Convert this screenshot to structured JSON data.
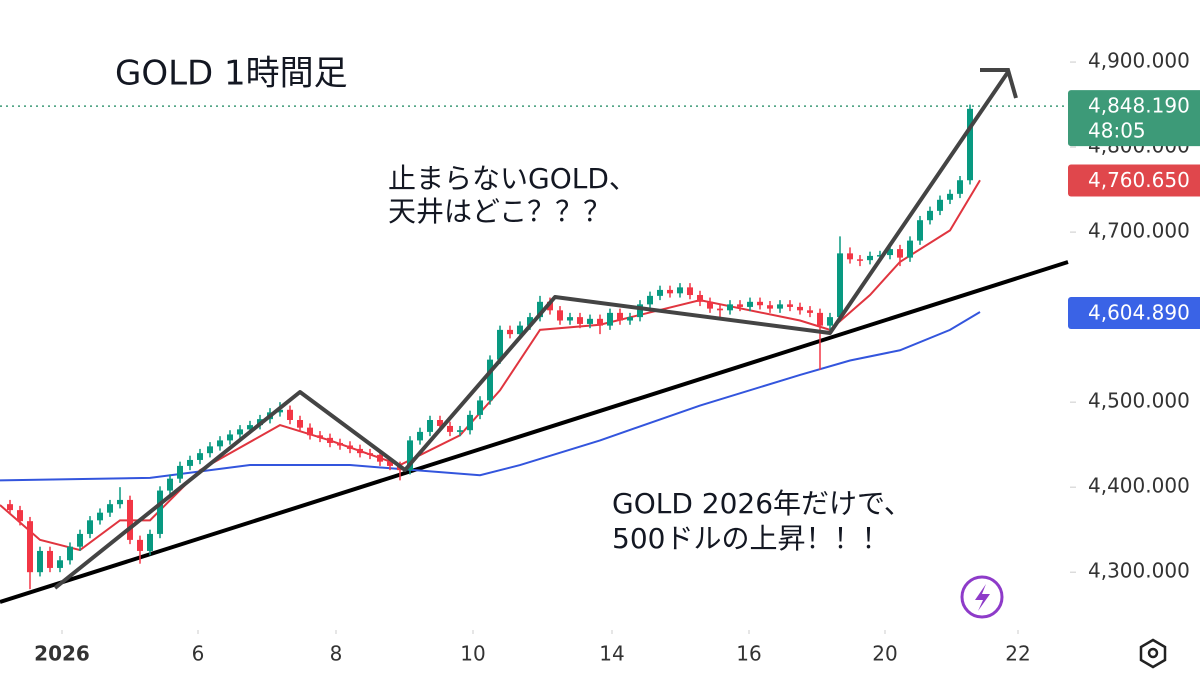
{
  "chart_data": {
    "type": "candlestick",
    "title": "GOLD 1時間足",
    "annotations": [
      [
        "止まらないGOLD、",
        "天井はどこ？？？"
      ],
      [
        "GOLD 2026年だけで、",
        "500ドルの上昇！！！"
      ]
    ],
    "up_color": "#089981",
    "down_color": "#f23645",
    "xlim": [
      -1,
      106
    ],
    "ylim": [
      4232,
      4973
    ],
    "xticks": [
      {
        "value": 5.2,
        "label": "2026"
      },
      {
        "value": 18.8,
        "label": "6"
      },
      {
        "value": 32.6,
        "label": "8"
      },
      {
        "value": 46.3,
        "label": "10"
      },
      {
        "value": 60.2,
        "label": "14"
      },
      {
        "value": 73.9,
        "label": "16"
      },
      {
        "value": 87.5,
        "label": "20"
      },
      {
        "value": 100.8,
        "label": "22"
      }
    ],
    "yticks": [
      {
        "value": 4300,
        "label": "4,300.000"
      },
      {
        "value": 4400,
        "label": "4,400.000"
      },
      {
        "value": 4500,
        "label": "4,500.000"
      },
      {
        "value": 4600,
        "label": "4,600.000"
      },
      {
        "value": 4700,
        "label": "4,700.000"
      },
      {
        "value": 4800,
        "label": "4,800.000"
      },
      {
        "value": 4900,
        "label": "4,900.000"
      }
    ],
    "open": [
      4380,
      4373,
      4360,
      4300,
      4325,
      4305,
      4314,
      4330,
      4345,
      4361,
      4370,
      4380,
      4385,
      4338,
      4325,
      4345,
      4396,
      4410,
      4425,
      4432,
      4440,
      4448,
      4455,
      4462,
      4468,
      4473,
      4480,
      4488,
      4491,
      4479,
      4470,
      4461,
      4458,
      4452,
      4449,
      4445,
      4440,
      4438,
      4430,
      4425,
      4420,
      4455,
      4465,
      4479,
      4472,
      4465,
      4467,
      4485,
      4502,
      4550,
      4585,
      4580,
      4590,
      4600,
      4618,
      4608,
      4596,
      4600,
      4592,
      4598,
      4590,
      4605,
      4596,
      4600,
      4615,
      4625,
      4632,
      4628,
      4635,
      4626,
      4618,
      4610,
      4608,
      4615,
      4612,
      4618,
      4614,
      4610,
      4615,
      4612,
      4608,
      4605,
      4590,
      4600,
      4675,
      4668,
      4667,
      4672,
      4673,
      4680,
      4670,
      4690,
      4714,
      4725,
      4738,
      4745,
      4761
    ],
    "close": [
      4373,
      4360,
      4300,
      4325,
      4305,
      4314,
      4330,
      4345,
      4361,
      4370,
      4380,
      4385,
      4338,
      4325,
      4345,
      4396,
      4410,
      4425,
      4432,
      4440,
      4448,
      4455,
      4462,
      4468,
      4473,
      4480,
      4488,
      4491,
      4479,
      4470,
      4461,
      4458,
      4452,
      4449,
      4445,
      4440,
      4438,
      4430,
      4425,
      4420,
      4455,
      4465,
      4479,
      4472,
      4465,
      4467,
      4485,
      4502,
      4550,
      4585,
      4580,
      4590,
      4600,
      4618,
      4608,
      4596,
      4600,
      4592,
      4598,
      4590,
      4605,
      4596,
      4600,
      4615,
      4625,
      4632,
      4628,
      4635,
      4626,
      4618,
      4610,
      4608,
      4615,
      4612,
      4618,
      4614,
      4610,
      4615,
      4612,
      4608,
      4605,
      4590,
      4600,
      4675,
      4668,
      4667,
      4672,
      4673,
      4680,
      4670,
      4690,
      4714,
      4725,
      4738,
      4745,
      4761,
      4845
    ],
    "high": [
      4385,
      4378,
      4365,
      4330,
      4330,
      4319,
      4335,
      4350,
      4366,
      4375,
      4385,
      4400,
      4390,
      4343,
      4350,
      4401,
      4415,
      4430,
      4437,
      4445,
      4453,
      4460,
      4467,
      4473,
      4478,
      4485,
      4493,
      4500,
      4496,
      4484,
      4475,
      4466,
      4463,
      4457,
      4454,
      4450,
      4445,
      4443,
      4435,
      4430,
      4460,
      4470,
      4484,
      4484,
      4477,
      4472,
      4490,
      4507,
      4555,
      4590,
      4590,
      4595,
      4605,
      4625,
      4623,
      4613,
      4605,
      4605,
      4603,
      4603,
      4610,
      4610,
      4605,
      4620,
      4630,
      4637,
      4637,
      4640,
      4640,
      4631,
      4623,
      4615,
      4620,
      4620,
      4623,
      4623,
      4619,
      4620,
      4620,
      4617,
      4613,
      4610,
      4605,
      4695,
      4682,
      4673,
      4677,
      4678,
      4685,
      4685,
      4695,
      4719,
      4730,
      4743,
      4750,
      4766,
      4850
    ],
    "low": [
      4368,
      4355,
      4280,
      4295,
      4300,
      4300,
      4309,
      4325,
      4340,
      4356,
      4365,
      4375,
      4333,
      4310,
      4320,
      4340,
      4391,
      4405,
      4420,
      4427,
      4435,
      4443,
      4450,
      4457,
      4463,
      4468,
      4475,
      4483,
      4474,
      4465,
      4456,
      4453,
      4447,
      4444,
      4440,
      4435,
      4433,
      4425,
      4420,
      4408,
      4415,
      4450,
      4460,
      4467,
      4460,
      4460,
      4462,
      4480,
      4497,
      4545,
      4575,
      4575,
      4585,
      4595,
      4603,
      4591,
      4591,
      4587,
      4587,
      4580,
      4585,
      4591,
      4591,
      4595,
      4610,
      4620,
      4623,
      4623,
      4621,
      4613,
      4605,
      4600,
      4603,
      4607,
      4607,
      4609,
      4605,
      4605,
      4607,
      4603,
      4600,
      4538,
      4585,
      4595,
      4663,
      4660,
      4662,
      4667,
      4668,
      4660,
      4665,
      4685,
      4709,
      4720,
      4733,
      4740,
      4756
    ],
    "moving_averages": [
      {
        "color": "#e0353f",
        "x": [
          -1,
          3,
          7,
          11,
          14,
          19,
          27,
          32,
          39,
          45,
          49,
          53,
          59,
          69,
          79,
          82,
          86,
          89,
          94,
          97
        ],
        "values": [
          4379,
          4338,
          4326,
          4361,
          4361,
          4420,
          4473,
          4455,
          4426,
          4461,
          4514,
          4585,
          4591,
          4620,
          4596,
          4585,
          4626,
          4665,
          4702,
          4761
        ]
      },
      {
        "color": "#3355dd",
        "x": [
          -1,
          14,
          24,
          34,
          47,
          51,
          59,
          69,
          79,
          84,
          89,
          94,
          97
        ],
        "values": [
          4408,
          4411,
          4426,
          4426,
          4414,
          4426,
          4455,
          4496,
          4532,
          4549,
          4561,
          4585,
          4606
        ]
      }
    ],
    "price_labels": [
      {
        "value": 4848.19,
        "label": "4,848.190",
        "sublabel": "48:05",
        "color": "#3d9a78"
      },
      {
        "value": 4760.65,
        "label": "4,760.650",
        "color": "#e0474c"
      },
      {
        "value": 4604.89,
        "label": "4,604.890",
        "color": "#3a63e6"
      }
    ]
  }
}
